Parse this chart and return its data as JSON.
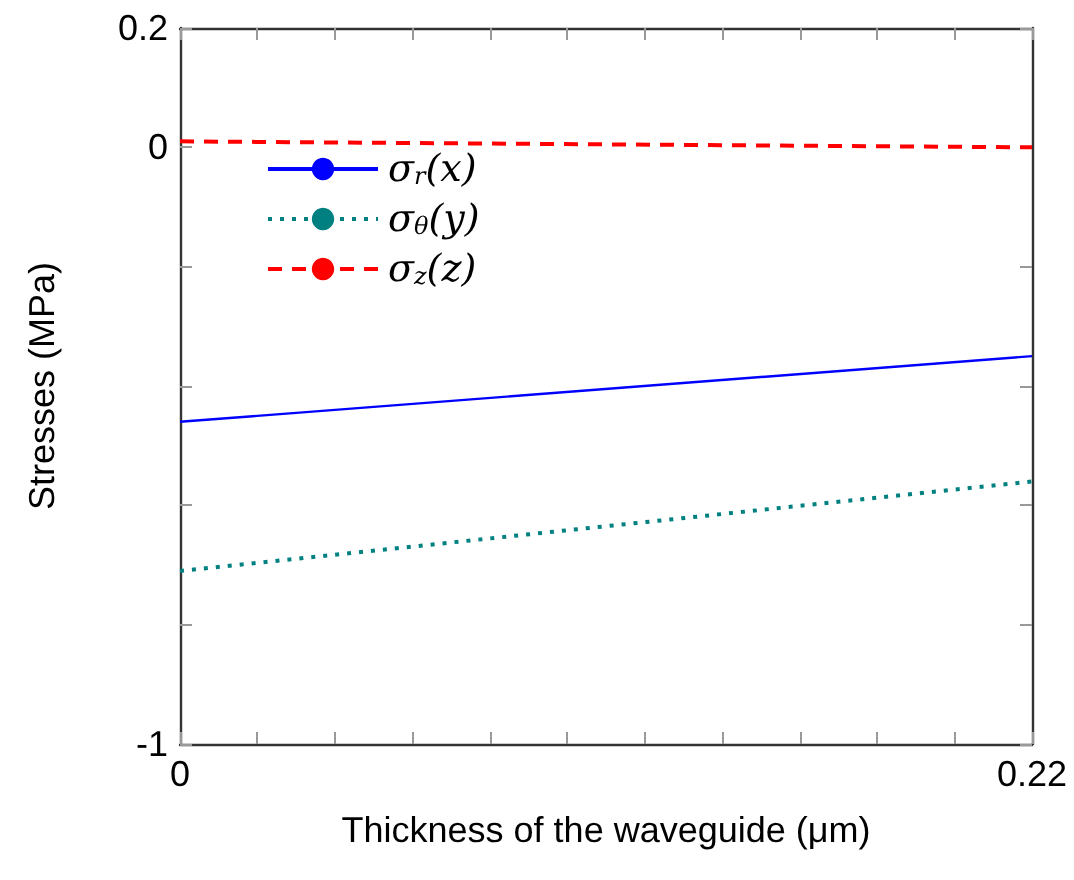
{
  "chart_data": {
    "type": "line",
    "xlabel": "Thickness of the waveguide (μm)",
    "ylabel": "Stresses (MPa)",
    "x": [
      0,
      0.22
    ],
    "series": [
      {
        "name": "σ$_{r}$(x)",
        "color": "#0000ff",
        "line_style": "solid",
        "values": [
          -0.46,
          -0.35
        ]
      },
      {
        "name": "σ$_{θ}$(y)",
        "color": "#008080",
        "line_style": "dotted",
        "values": [
          -0.71,
          -0.56
        ]
      },
      {
        "name": "σ$_{z}$(z)",
        "color": "#ff0000",
        "line_style": "dashed",
        "values": [
          0.01,
          0
        ]
      }
    ],
    "xlim": [
      0,
      0.22
    ],
    "xticks": [
      0,
      {
        "value": 0.02,
        "label": null
      },
      {
        "value": 0.04,
        "label": null
      },
      {
        "value": 0.06,
        "label": null
      },
      {
        "value": 0.08,
        "label": null
      },
      {
        "value": 0.1,
        "label": null
      },
      {
        "value": 0.12,
        "label": null
      },
      {
        "value": 0.14,
        "label": null
      },
      {
        "value": 0.16,
        "label": null
      },
      {
        "value": 0.18,
        "label": null
      },
      {
        "value": 0.2,
        "label": null
      },
      0.22
    ],
    "ylim": [
      -1,
      0.2
    ],
    "yticks": [
      -1,
      {
        "value": -0.8,
        "label": null
      },
      {
        "value": -0.6,
        "label": null
      },
      {
        "value": -0.4,
        "label": null
      },
      {
        "value": -0.2,
        "label": null
      },
      0,
      0.2
    ],
    "grid": false,
    "legend": "top left",
    "marker": "none"
  }
}
